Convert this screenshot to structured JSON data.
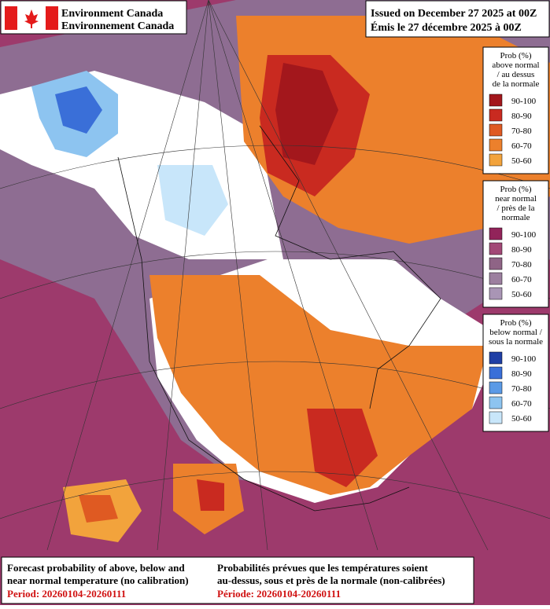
{
  "header": {
    "agency_en": "Environment Canada",
    "agency_fr": "Environnement Canada",
    "issued_en": "Issued on December 27 2025 at 00Z",
    "issued_fr": "Émis le 27 décembre 2025 à 00Z"
  },
  "legends": [
    {
      "title": [
        "Prob (%)",
        "above normal",
        "/ au dessus",
        "de la normale"
      ],
      "items": [
        {
          "label": "90-100",
          "color": "#a3171c"
        },
        {
          "label": "80-90",
          "color": "#c92a20"
        },
        {
          "label": "70-80",
          "color": "#df5a22"
        },
        {
          "label": "60-70",
          "color": "#ec802c"
        },
        {
          "label": "50-60",
          "color": "#f2a33c"
        }
      ]
    },
    {
      "title": [
        "Prob (%)",
        "near normal",
        "/ près de la",
        "normale"
      ],
      "items": [
        {
          "label": "90-100",
          "color": "#92245a"
        },
        {
          "label": "80-90",
          "color": "#a24876"
        },
        {
          "label": "70-80",
          "color": "#8f6486"
        },
        {
          "label": "60-70",
          "color": "#9c7f9f"
        },
        {
          "label": "50-60",
          "color": "#a995b5"
        }
      ]
    },
    {
      "title": [
        "Prob (%)",
        "below normal /",
        "sous la normale"
      ],
      "items": [
        {
          "label": "90-100",
          "color": "#1f3fa5"
        },
        {
          "label": "80-90",
          "color": "#3a6fd8"
        },
        {
          "label": "70-80",
          "color": "#5b9ae6"
        },
        {
          "label": "60-70",
          "color": "#8dc4f0"
        },
        {
          "label": "50-60",
          "color": "#c8e6fa"
        }
      ]
    }
  ],
  "footer": {
    "en": [
      "Forecast probability of above, below and",
      "near normal temperature (no calibration)"
    ],
    "period_en": "Period: 20260104-20260111",
    "fr": [
      "Probabilités prévues que les températures soient",
      "au-dessus, sous et près de la normale (non-calibrées)"
    ],
    "period_fr": "Période: 20260104-20260111"
  }
}
